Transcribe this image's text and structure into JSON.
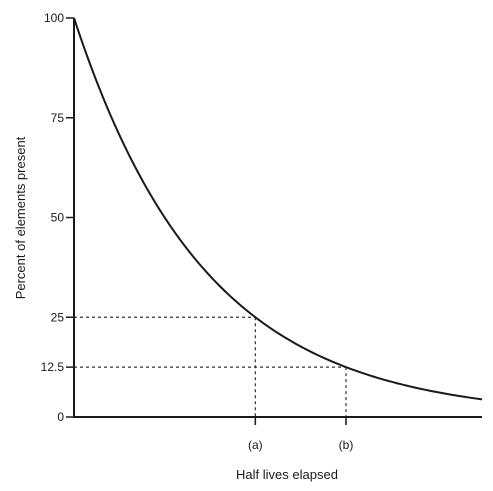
{
  "colors": {
    "curve": "#1a1a1a",
    "axis": "#1a1a1a",
    "guide": "#333333",
    "background": "#ffffff"
  },
  "chart_data": {
    "type": "line",
    "title": "",
    "xlabel": "Half lives elapsed",
    "ylabel": "Percent of elements present",
    "ylim": [
      0,
      100
    ],
    "xlim": [
      0,
      4.5
    ],
    "grid": false,
    "legend": "none",
    "y_ticks": [
      {
        "value": 0,
        "label": "0"
      },
      {
        "value": 12.5,
        "label": "12.5"
      },
      {
        "value": 25,
        "label": "25"
      },
      {
        "value": 50,
        "label": "50"
      },
      {
        "value": 75,
        "label": "75"
      },
      {
        "value": 100,
        "label": "100"
      }
    ],
    "x_markers": [
      {
        "value": 2,
        "label": "(a)",
        "y_value": 25
      },
      {
        "value": 3,
        "label": "(b)",
        "y_value": 12.5
      }
    ],
    "series": [
      {
        "x": [
          0,
          0.25,
          0.5,
          0.75,
          1,
          1.25,
          1.5,
          1.75,
          2,
          2.25,
          2.5,
          2.75,
          3,
          3.25,
          3.5,
          3.75,
          4,
          4.25,
          4.5
        ],
        "values": [
          100,
          84.1,
          70.7,
          59.5,
          50,
          42.0,
          35.4,
          29.7,
          25,
          21.0,
          17.7,
          14.9,
          12.5,
          10.5,
          8.8,
          7.4,
          6.3,
          5.3,
          4.4
        ]
      }
    ]
  }
}
